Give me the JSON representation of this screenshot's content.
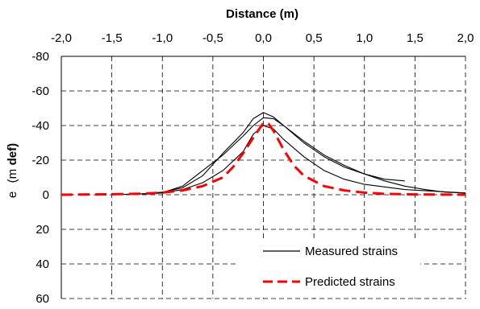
{
  "chart_data": {
    "type": "line",
    "xlabel": "Distance (m)",
    "ylabel": {
      "part1": "e",
      "part2": "(m",
      "part3": "def)"
    },
    "xlim": [
      -2.0,
      2.0
    ],
    "ylim": [
      60,
      -80
    ],
    "x_ticks": [
      "-2,0",
      "-1,5",
      "-1,0",
      "-0,5",
      "0,0",
      "0,5",
      "1,0",
      "1,5",
      "2,0"
    ],
    "x_tick_values": [
      -2.0,
      -1.5,
      -1.0,
      -0.5,
      0.0,
      0.5,
      1.0,
      1.5,
      2.0
    ],
    "y_ticks": [
      "-80",
      "-60",
      "-40",
      "-20",
      "0",
      "20",
      "40",
      "60"
    ],
    "y_tick_values": [
      -80,
      -60,
      -40,
      -20,
      0,
      20,
      40,
      60
    ],
    "grid": true,
    "legend": {
      "placement": "bottom-right",
      "entries": [
        {
          "label": "Measured strains",
          "color": "#000000",
          "style": "solid"
        },
        {
          "label": "Predicted strains",
          "color": "#ff0000",
          "style": "dashed"
        }
      ]
    },
    "series": [
      {
        "name": "Measured strains",
        "color": "#000000",
        "x": [
          -1.5,
          -1.2,
          -1.0,
          -0.8,
          -0.6,
          -0.4,
          -0.2,
          -0.1,
          0.0,
          0.1,
          0.2,
          0.4,
          0.6,
          0.8,
          1.0,
          1.2,
          1.4
        ],
        "y": [
          0,
          -0.5,
          -1.5,
          -4,
          -11,
          -24,
          -36,
          -44,
          -47.5,
          -45,
          -40,
          -30,
          -22,
          -16,
          -12,
          -9,
          -8
        ]
      },
      {
        "name": "Measured strains",
        "color": "#000000",
        "x": [
          -1.5,
          -1.2,
          -1.0,
          -0.8,
          -0.6,
          -0.4,
          -0.2,
          -0.1,
          0.0,
          0.1,
          0.2,
          0.4,
          0.6,
          0.8,
          1.0,
          1.2,
          1.4,
          1.7,
          2.0
        ],
        "y": [
          0,
          -0.5,
          -1,
          -3,
          -7,
          -14,
          -25,
          -35,
          -40,
          -38,
          -32,
          -22,
          -14,
          -9,
          -6,
          -4.5,
          -3,
          -2,
          -1
        ]
      },
      {
        "name": "Measured strains",
        "color": "#000000",
        "x": [
          -1.5,
          -1.2,
          -1.0,
          -0.8,
          -0.6,
          -0.4,
          -0.2,
          -0.1,
          0.0,
          0.1,
          0.2,
          0.4,
          0.6,
          0.8,
          1.0,
          1.2,
          1.4,
          1.6,
          1.8,
          2.0
        ],
        "y": [
          0,
          -0.5,
          -1.2,
          -5,
          -14,
          -23,
          -34,
          -40,
          -44.5,
          -44,
          -40,
          -31,
          -23,
          -17,
          -12,
          -8,
          -5,
          -3,
          -1.5,
          -1
        ]
      },
      {
        "name": "Predicted strains",
        "color": "#ff0000",
        "x": [
          -2.0,
          -1.5,
          -1.2,
          -1.0,
          -0.8,
          -0.6,
          -0.4,
          -0.3,
          -0.2,
          -0.1,
          0.0,
          0.05,
          0.1,
          0.2,
          0.3,
          0.4,
          0.6,
          0.8,
          1.0,
          1.2,
          1.5,
          2.0
        ],
        "y": [
          0,
          -0.3,
          -0.6,
          -1.2,
          -2.5,
          -5,
          -10,
          -16,
          -24,
          -33,
          -41.5,
          -41,
          -37,
          -26,
          -17,
          -11,
          -5,
          -2.5,
          -1.2,
          -0.5,
          -0.2,
          0
        ]
      }
    ]
  }
}
